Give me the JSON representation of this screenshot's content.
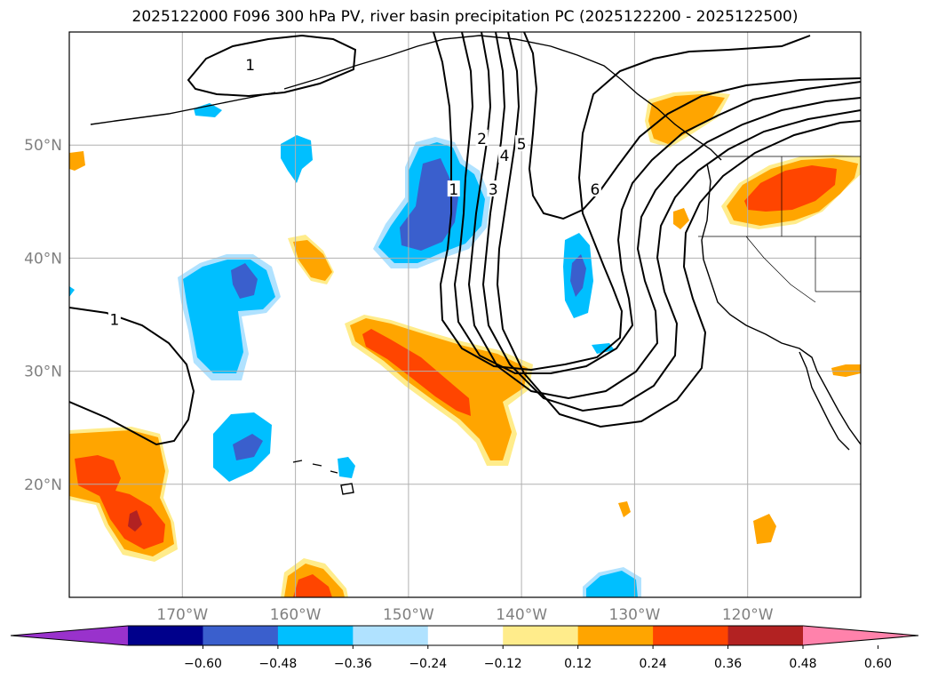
{
  "title": "2025122000 F096 300 hPa PV, river basin precipitation PC (2025122200 - 2025122500)",
  "map": {
    "projection": "cylindrical",
    "lon_range": [
      -180,
      -110
    ],
    "lat_range": [
      10,
      60
    ],
    "lon_ticks": [
      {
        "lon": -170,
        "label": "170°W"
      },
      {
        "lon": -160,
        "label": "160°W"
      },
      {
        "lon": -150,
        "label": "150°W"
      },
      {
        "lon": -140,
        "label": "140°W"
      },
      {
        "lon": -130,
        "label": "130°W"
      },
      {
        "lon": -120,
        "label": "120°W"
      }
    ],
    "lat_ticks": [
      {
        "lat": 20,
        "label": "20°N"
      },
      {
        "lat": 30,
        "label": "30°N"
      },
      {
        "lat": 40,
        "label": "40°N"
      },
      {
        "lat": 50,
        "label": "50°N"
      }
    ],
    "grid": true
  },
  "pv_contours": {
    "labels": [
      {
        "text": "1",
        "lon": -164,
        "lat": 57
      },
      {
        "text": "1",
        "lon": -176,
        "lat": 34.5
      },
      {
        "text": "1",
        "lon": -146,
        "lat": 46
      },
      {
        "text": "2",
        "lon": -143.5,
        "lat": 50.5
      },
      {
        "text": "3",
        "lon": -142.5,
        "lat": 46
      },
      {
        "text": "4",
        "lon": -141.5,
        "lat": 49
      },
      {
        "text": "5",
        "lon": -140,
        "lat": 50
      },
      {
        "text": "6",
        "lon": -133.5,
        "lat": 46
      }
    ]
  },
  "colorbar": {
    "colors": [
      "#9932cc",
      "#00008b",
      "#3a5fcd",
      "#00bfff",
      "#b0e2ff",
      "#ffffff",
      "#ffec8b",
      "#ffa500",
      "#ff4500",
      "#b22222",
      "#ff82ab"
    ],
    "tick_labels": [
      "−0.60",
      "−0.48",
      "−0.36",
      "−0.24",
      "−0.12",
      "0.12",
      "0.24",
      "0.36",
      "0.48",
      "0.60"
    ],
    "extend": "both"
  }
}
